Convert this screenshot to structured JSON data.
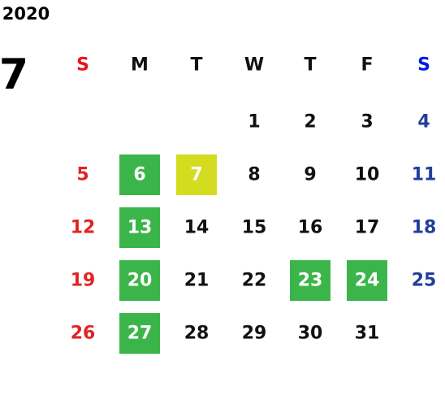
{
  "year": "2020",
  "month": "7",
  "weekdays": [
    "S",
    "M",
    "T",
    "W",
    "T",
    "F",
    "S"
  ],
  "header_colors": [
    "#e8141b",
    "#111111",
    "#111111",
    "#111111",
    "#111111",
    "#111111",
    "#0019e6"
  ],
  "day_colors": [
    "#e02424",
    "#111111",
    "#111111",
    "#111111",
    "#111111",
    "#111111",
    "#1f3f99"
  ],
  "weeks": [
    [
      null,
      null,
      null,
      1,
      2,
      3,
      4
    ],
    [
      5,
      {
        "value": 6,
        "color": "#3bb54a"
      },
      {
        "value": 7,
        "color": "#d4dc1f"
      },
      8,
      9,
      10,
      11
    ],
    [
      12,
      {
        "value": 13,
        "color": "#3bb54a"
      },
      14,
      15,
      16,
      17,
      18
    ],
    [
      19,
      {
        "value": 20,
        "color": "#3bb54a"
      },
      21,
      22,
      {
        "value": 23,
        "color": "#3bb54a"
      },
      {
        "value": 24,
        "color": "#3bb54a"
      },
      25
    ],
    [
      26,
      {
        "value": 27,
        "color": "#3bb54a"
      },
      28,
      29,
      30,
      31,
      null
    ]
  ]
}
